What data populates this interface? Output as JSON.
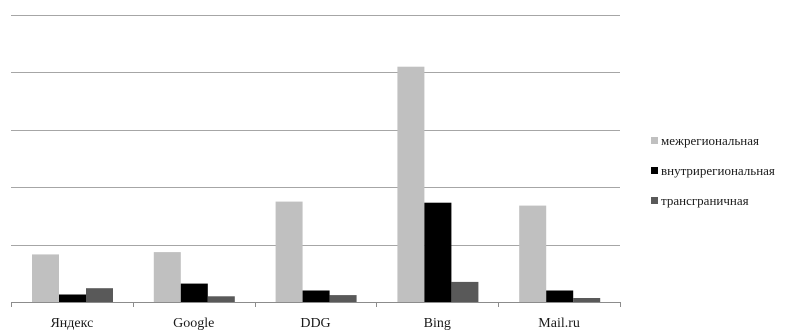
{
  "chart_data": {
    "type": "bar",
    "title": "",
    "xlabel": "",
    "ylabel": "",
    "categories": [
      "Яндекс",
      "Google",
      "DDG",
      "Bing",
      "Mail.ru"
    ],
    "series": [
      {
        "name": "межрегиональная",
        "color": "#c0c0c0",
        "values": [
          0.83,
          0.87,
          1.75,
          4.1,
          1.68
        ]
      },
      {
        "name": "внутрирегиональная",
        "color": "#000000",
        "values": [
          0.13,
          0.32,
          0.2,
          1.73,
          0.2
        ]
      },
      {
        "name": "трансграничная",
        "color": "#595959",
        "values": [
          0.24,
          0.1,
          0.12,
          0.35,
          0.07
        ]
      }
    ],
    "ylim": [
      0,
      5
    ],
    "y_gridlines": [
      1,
      2,
      3,
      4,
      5
    ],
    "y_tick_labels_shown": false,
    "grid": true,
    "legend_position": "right"
  }
}
